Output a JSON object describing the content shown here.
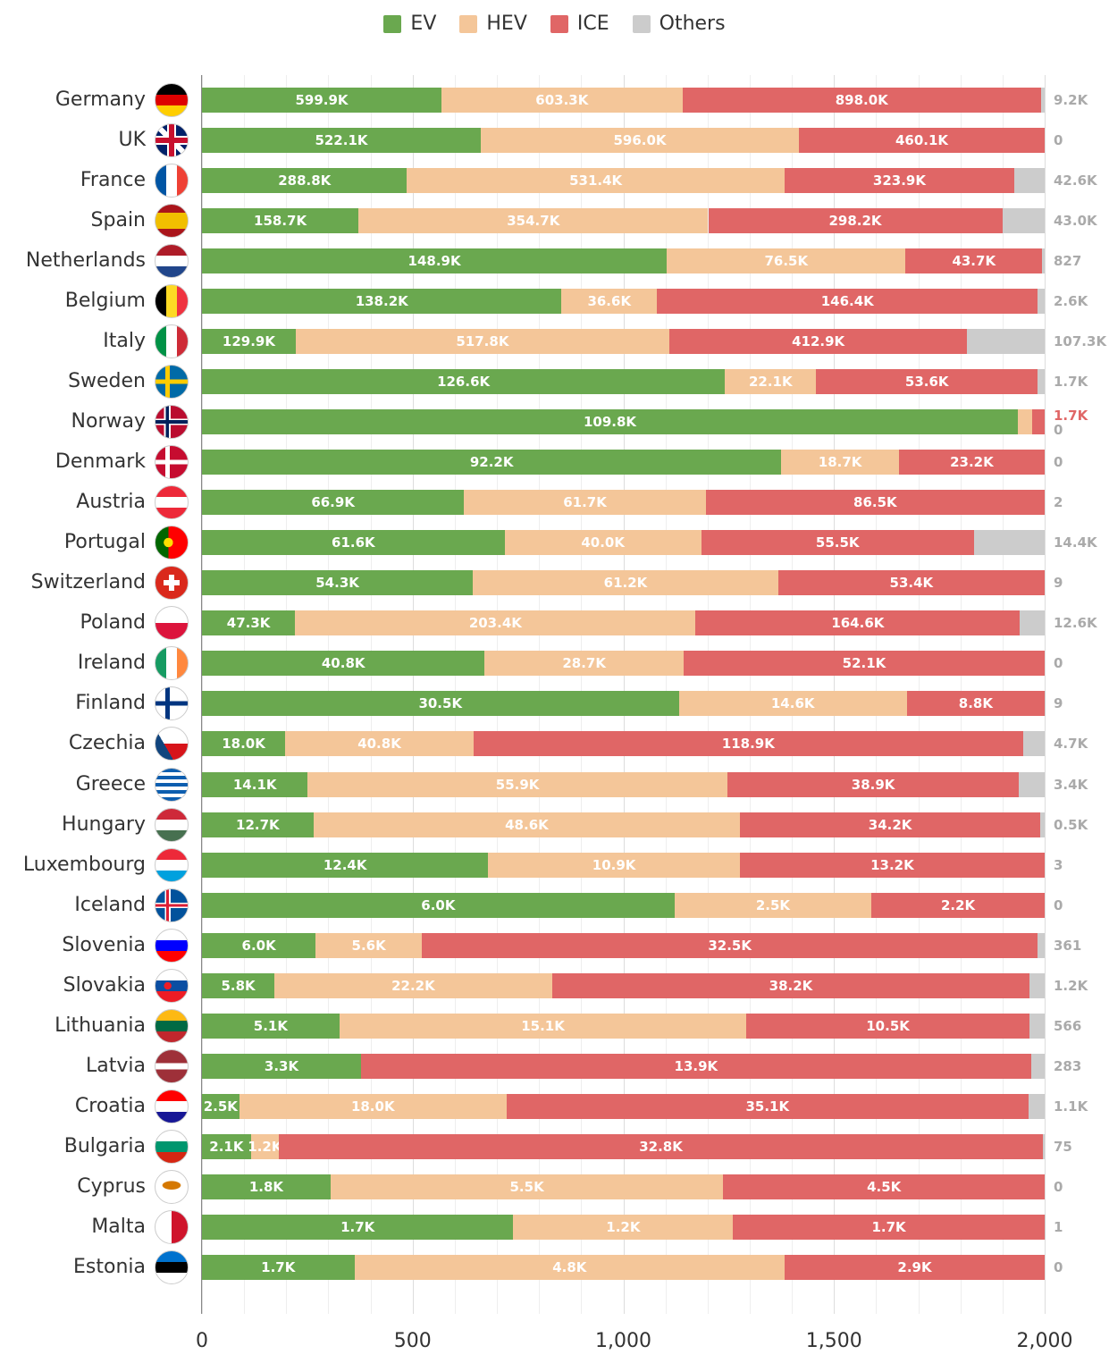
{
  "chart_data": {
    "type": "bar",
    "orientation": "horizontal",
    "stacked": "percent",
    "xlim": [
      0,
      2000
    ],
    "xticks": [
      "0",
      "500",
      "1,000",
      "1,500",
      "2,000"
    ],
    "grid": true,
    "legend_position": "top",
    "series": [
      {
        "name": "EV",
        "color": "#6aa84f"
      },
      {
        "name": "HEV",
        "color": "#f4c699"
      },
      {
        "name": "ICE",
        "color": "#e06666"
      },
      {
        "name": "Others",
        "color": "#cccccc"
      }
    ],
    "rows": [
      {
        "country": "Germany",
        "flag": "flag-germany",
        "EV": "599.9K",
        "HEV": "603.3K",
        "ICE": "898.0K",
        "Others": "9.2K"
      },
      {
        "country": "UK",
        "flag": "flag-uk",
        "EV": "522.1K",
        "HEV": "596.0K",
        "ICE": "460.1K",
        "Others": "0"
      },
      {
        "country": "France",
        "flag": "flag-france",
        "EV": "288.8K",
        "HEV": "531.4K",
        "ICE": "323.9K",
        "Others": "42.6K"
      },
      {
        "country": "Spain",
        "flag": "flag-spain",
        "EV": "158.7K",
        "HEV": "354.7K",
        "ICE": "298.2K",
        "Others": "43.0K"
      },
      {
        "country": "Netherlands",
        "flag": "flag-netherlands",
        "EV": "148.9K",
        "HEV": "76.5K",
        "ICE": "43.7K",
        "Others": "827"
      },
      {
        "country": "Belgium",
        "flag": "flag-belgium",
        "EV": "138.2K",
        "HEV": "36.6K",
        "ICE": "146.4K",
        "Others": "2.6K"
      },
      {
        "country": "Italy",
        "flag": "flag-italy",
        "EV": "129.9K",
        "HEV": "517.8K",
        "ICE": "412.9K",
        "Others": "107.3K"
      },
      {
        "country": "Sweden",
        "flag": "flag-sweden",
        "EV": "126.6K",
        "HEV": "22.1K",
        "ICE": "53.6K",
        "Others": "1.7K"
      },
      {
        "country": "Norway",
        "flag": "flag-norway",
        "EV": "109.8K",
        "HEV": "1.9K",
        "ICE": "1.7K",
        "Others": "0"
      },
      {
        "country": "Denmark",
        "flag": "flag-denmark",
        "EV": "92.2K",
        "HEV": "18.7K",
        "ICE": "23.2K",
        "Others": "0"
      },
      {
        "country": "Austria",
        "flag": "flag-austria",
        "EV": "66.9K",
        "HEV": "61.7K",
        "ICE": "86.5K",
        "Others": "2"
      },
      {
        "country": "Portugal",
        "flag": "flag-portugal",
        "EV": "61.6K",
        "HEV": "40.0K",
        "ICE": "55.5K",
        "Others": "14.4K"
      },
      {
        "country": "Switzerland",
        "flag": "flag-switzerland",
        "EV": "54.3K",
        "HEV": "61.2K",
        "ICE": "53.4K",
        "Others": "9"
      },
      {
        "country": "Poland",
        "flag": "flag-poland",
        "EV": "47.3K",
        "HEV": "203.4K",
        "ICE": "164.6K",
        "Others": "12.6K"
      },
      {
        "country": "Ireland",
        "flag": "flag-ireland",
        "EV": "40.8K",
        "HEV": "28.7K",
        "ICE": "52.1K",
        "Others": "0"
      },
      {
        "country": "Finland",
        "flag": "flag-finland",
        "EV": "30.5K",
        "HEV": "14.6K",
        "ICE": "8.8K",
        "Others": "9"
      },
      {
        "country": "Czechia",
        "flag": "flag-czechia",
        "EV": "18.0K",
        "HEV": "40.8K",
        "ICE": "118.9K",
        "Others": "4.7K"
      },
      {
        "country": "Greece",
        "flag": "flag-greece",
        "EV": "14.1K",
        "HEV": "55.9K",
        "ICE": "38.9K",
        "Others": "3.4K"
      },
      {
        "country": "Hungary",
        "flag": "flag-hungary",
        "EV": "12.7K",
        "HEV": "48.6K",
        "ICE": "34.2K",
        "Others": "0.5K"
      },
      {
        "country": "Luxembourg",
        "flag": "flag-luxembourg",
        "EV": "12.4K",
        "HEV": "10.9K",
        "ICE": "13.2K",
        "Others": "3"
      },
      {
        "country": "Iceland",
        "flag": "flag-iceland",
        "EV": "6.0K",
        "HEV": "2.5K",
        "ICE": "2.2K",
        "Others": "0"
      },
      {
        "country": "Slovenia",
        "flag": "flag-slovenia",
        "EV": "6.0K",
        "HEV": "5.6K",
        "ICE": "32.5K",
        "Others": "361"
      },
      {
        "country": "Slovakia",
        "flag": "flag-slovakia",
        "EV": "5.8K",
        "HEV": "22.2K",
        "ICE": "38.2K",
        "Others": "1.2K"
      },
      {
        "country": "Lithuania",
        "flag": "flag-lithuania",
        "EV": "5.1K",
        "HEV": "15.1K",
        "ICE": "10.5K",
        "Others": "566"
      },
      {
        "country": "Latvia",
        "flag": "flag-latvia",
        "EV": "3.3K",
        "HEV": "",
        "ICE": "13.9K",
        "Others": "283"
      },
      {
        "country": "Croatia",
        "flag": "flag-croatia",
        "EV": "2.5K",
        "HEV": "18.0K",
        "ICE": "35.1K",
        "Others": "1.1K"
      },
      {
        "country": "Bulgaria",
        "flag": "flag-bulgaria",
        "EV": "2.1K",
        "HEV": "1.2K",
        "ICE": "32.8K",
        "Others": "75"
      },
      {
        "country": "Cyprus",
        "flag": "flag-cyprus",
        "EV": "1.8K",
        "HEV": "5.5K",
        "ICE": "4.5K",
        "Others": "0"
      },
      {
        "country": "Malta",
        "flag": "flag-malta",
        "EV": "1.7K",
        "HEV": "1.2K",
        "ICE": "1.7K",
        "Others": "1"
      },
      {
        "country": "Estonia",
        "flag": "flag-estonia",
        "EV": "1.7K",
        "HEV": "4.8K",
        "ICE": "2.9K",
        "Others": "0"
      }
    ]
  }
}
